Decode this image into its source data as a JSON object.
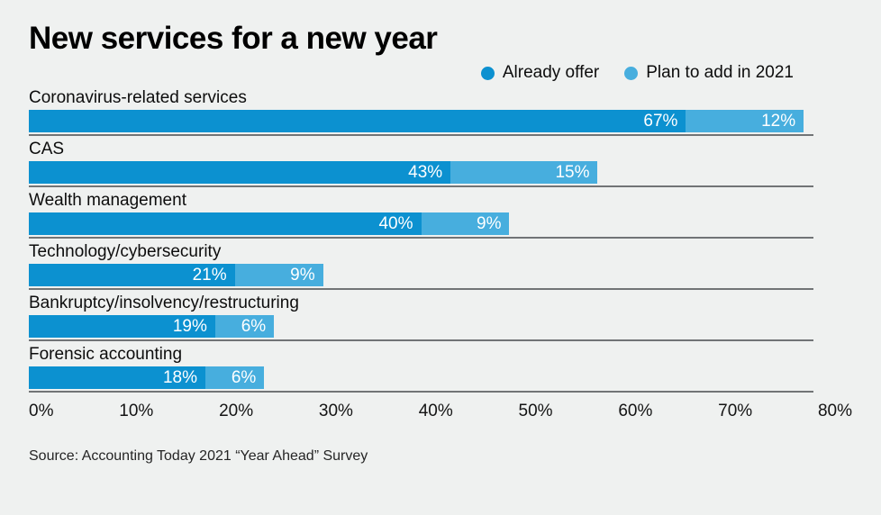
{
  "title": "New services for a new year",
  "legend": {
    "items": [
      {
        "label": "Already offer",
        "color": "#0c91d0"
      },
      {
        "label": "Plan to add in 2021",
        "color": "#47aede"
      }
    ]
  },
  "chart_data": {
    "type": "bar",
    "orientation": "horizontal",
    "stacked": true,
    "title": "New services for a new year",
    "categories": [
      "Coronavirus-related services",
      "CAS",
      "Wealth management",
      "Technology/cybersecurity",
      "Bankruptcy/insolvency/restructuring",
      "Forensic accounting"
    ],
    "series": [
      {
        "name": "Already offer",
        "color": "#0c91d0",
        "values": [
          67,
          43,
          40,
          21,
          19,
          18
        ]
      },
      {
        "name": "Plan to add in 2021",
        "color": "#47aede",
        "values": [
          12,
          15,
          9,
          9,
          6,
          6
        ]
      }
    ],
    "value_suffix": "%",
    "xlim": [
      0,
      80
    ],
    "x_tick_labels": [
      "0%",
      "10%",
      "20%",
      "30%",
      "40%",
      "50%",
      "60%",
      "70%",
      "80%"
    ],
    "grid": "row-divider-lines",
    "legend_position": "top-right",
    "value_labels": "inside-end-white"
  },
  "source": "Source: Accounting Today 2021 “Year Ahead” Survey",
  "colors": {
    "background": "#eff1f0",
    "already_offer": "#0c91d0",
    "plan_to_add": "#47aede",
    "divider_line": "#717476",
    "text": "#0d0d0d"
  }
}
